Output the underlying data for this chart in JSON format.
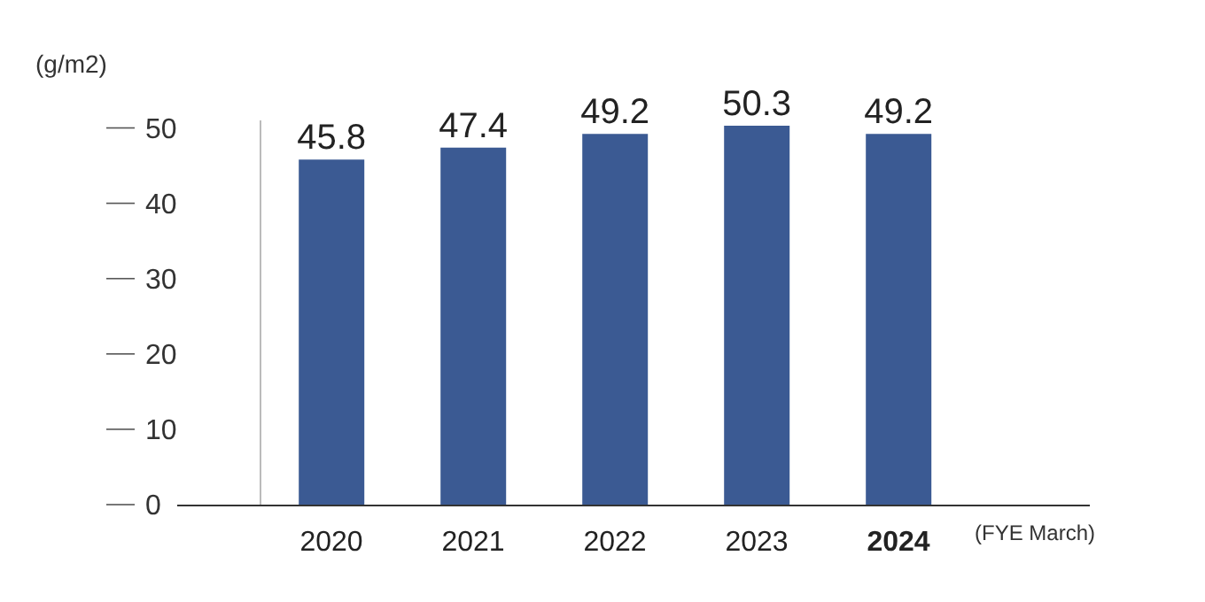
{
  "chart_data": {
    "type": "bar",
    "ylabel": "(g/m2)",
    "xlabel": "(FYE March)",
    "categories": [
      "2020",
      "2021",
      "2022",
      "2023",
      "2024"
    ],
    "values": [
      45.8,
      47.4,
      49.2,
      50.3,
      49.2
    ],
    "color": "#3b5a93",
    "ylim": [
      0,
      51
    ],
    "yticks": [
      0,
      10,
      20,
      30,
      40,
      50
    ],
    "data_labels": true,
    "grid": false,
    "legend": false
  }
}
